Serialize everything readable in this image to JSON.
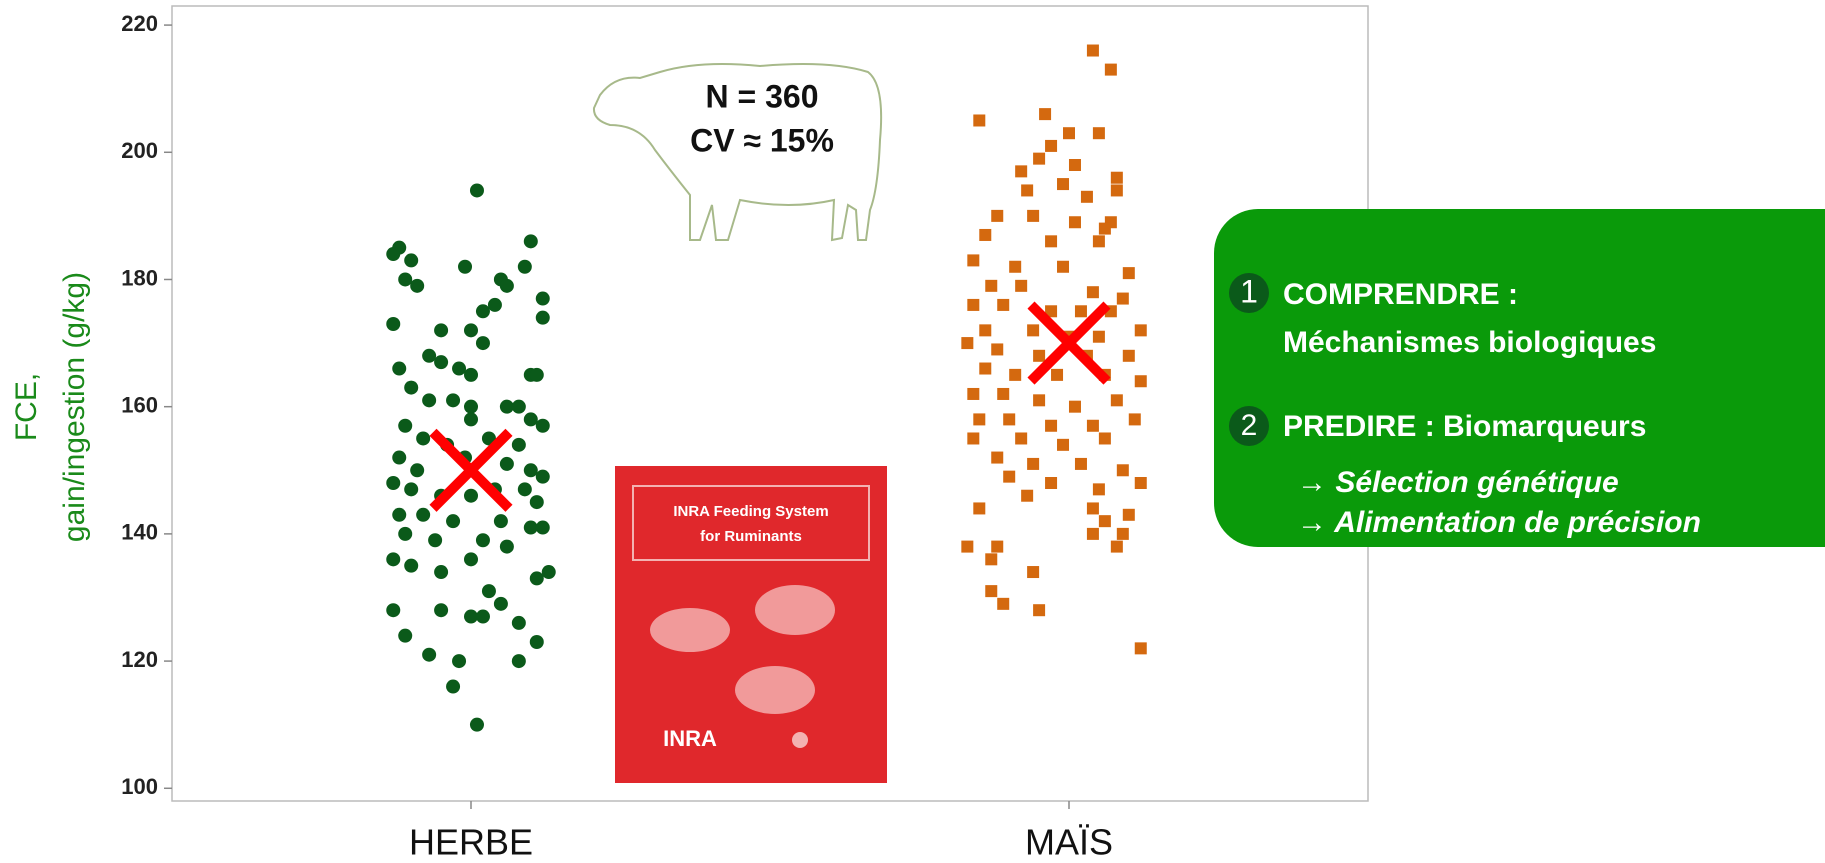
{
  "chart_data": {
    "type": "scatter",
    "ylabel": [
      "FCE,",
      "gain/ingestion (g/kg)"
    ],
    "xlim": [
      0.5,
      2.5
    ],
    "xticks": [
      {
        "value": 1,
        "label": "HERBE"
      },
      {
        "value": 2,
        "label": "MAÏS"
      }
    ],
    "ylim": [
      98,
      223
    ],
    "yticks": [
      100,
      120,
      140,
      160,
      180,
      200,
      220
    ],
    "grid": false,
    "series": [
      {
        "color": "#0b5a1a",
        "marker": "circle",
        "x": [
          0.88,
          0.87,
          0.9,
          0.99,
          1.1,
          1.09,
          1.12,
          1.12,
          1.01,
          0.89,
          0.91,
          1.05,
          1.06,
          0.87,
          0.95,
          1.0,
          1.02,
          1.04,
          1.02,
          0.93,
          0.95,
          0.98,
          1.0,
          1.1,
          1.11,
          0.88,
          0.9,
          0.93,
          0.97,
          1.0,
          1.06,
          1.08,
          1.0,
          1.1,
          1.12,
          0.89,
          0.92,
          0.96,
          1.03,
          1.08,
          0.88,
          0.91,
          0.99,
          1.06,
          1.1,
          1.12,
          0.87,
          0.9,
          0.95,
          1.0,
          1.04,
          1.09,
          1.11,
          0.88,
          0.92,
          0.97,
          1.05,
          1.1,
          1.12,
          0.89,
          0.94,
          1.02,
          1.06,
          0.87,
          0.9,
          0.95,
          1.0,
          1.11,
          1.13,
          1.03,
          1.05,
          1.0,
          1.02,
          0.87,
          0.95,
          1.08,
          0.89,
          1.11,
          0.93,
          0.98,
          1.08,
          0.97,
          1.01
        ],
        "values": [
          185,
          184,
          183,
          182,
          186,
          182,
          177,
          174,
          194,
          180,
          179,
          180,
          179,
          173,
          172,
          172,
          170,
          176,
          175,
          168,
          167,
          166,
          165,
          165,
          165,
          166,
          163,
          161,
          161,
          160,
          160,
          160,
          158,
          158,
          157,
          157,
          155,
          154,
          155,
          154,
          152,
          150,
          152,
          151,
          150,
          149,
          148,
          147,
          146,
          146,
          147,
          147,
          145,
          143,
          143,
          142,
          142,
          141,
          141,
          140,
          139,
          139,
          138,
          136,
          135,
          134,
          136,
          133,
          134,
          131,
          129,
          127,
          127,
          128,
          128,
          126,
          124,
          123,
          121,
          120,
          120,
          116,
          110
        ]
      },
      {
        "color": "#d4690f",
        "marker": "square",
        "x": [
          2.04,
          2.07,
          1.85,
          1.96,
          2.0,
          2.05,
          1.97,
          1.95,
          2.01,
          1.92,
          2.08,
          2.08,
          1.99,
          1.93,
          2.03,
          1.88,
          1.94,
          2.01,
          2.07,
          1.86,
          1.97,
          2.06,
          2.05,
          1.84,
          1.91,
          1.99,
          2.1,
          1.87,
          1.92,
          2.04,
          2.09,
          1.84,
          1.89,
          1.97,
          2.02,
          2.07,
          1.86,
          1.94,
          2.0,
          2.05,
          2.12,
          1.83,
          1.88,
          1.95,
          2.03,
          2.1,
          1.86,
          1.91,
          1.98,
          2.06,
          2.12,
          1.84,
          1.89,
          1.95,
          2.01,
          2.08,
          1.85,
          1.9,
          1.97,
          2.04,
          2.11,
          1.84,
          1.92,
          1.99,
          2.06,
          1.88,
          1.94,
          2.02,
          2.09,
          1.9,
          1.97,
          2.05,
          2.12,
          1.93,
          1.85,
          2.04,
          2.1,
          2.06,
          2.09,
          1.83,
          1.88,
          2.04,
          2.08,
          1.87,
          1.94,
          1.87,
          1.89,
          1.95,
          2.12
        ],
        "values": [
          216,
          213,
          205,
          206,
          203,
          203,
          201,
          199,
          198,
          197,
          196,
          194,
          195,
          194,
          193,
          190,
          190,
          189,
          189,
          187,
          186,
          188,
          186,
          183,
          182,
          182,
          181,
          179,
          179,
          178,
          177,
          176,
          176,
          175,
          175,
          175,
          172,
          172,
          171,
          171,
          172,
          170,
          169,
          168,
          168,
          168,
          166,
          165,
          165,
          165,
          164,
          162,
          162,
          161,
          160,
          161,
          158,
          158,
          157,
          157,
          158,
          155,
          155,
          154,
          155,
          152,
          151,
          151,
          150,
          149,
          148,
          147,
          148,
          146,
          144,
          144,
          143,
          142,
          140,
          138,
          138,
          140,
          138,
          136,
          134,
          131,
          129,
          128,
          122
        ]
      }
    ],
    "means": {
      "color": "#ff0000",
      "x": [
        1,
        2
      ],
      "values": [
        150,
        170
      ]
    },
    "annotations": [
      "N = 360",
      "CV ≈ 15%"
    ],
    "book": {
      "title": [
        "INRA Feeding System",
        "for Ruminants"
      ],
      "logo": "INRA"
    },
    "callout": {
      "items": [
        {
          "number": "1",
          "lines": [
            "COMPRENDRE :",
            "Méchanismes biologiques"
          ]
        },
        {
          "number": "2",
          "lines": [
            "PREDIRE : Biomarqueurs"
          ]
        }
      ],
      "bullets": [
        "→ Sélection génétique",
        "→ Alimentation de précision"
      ]
    }
  }
}
